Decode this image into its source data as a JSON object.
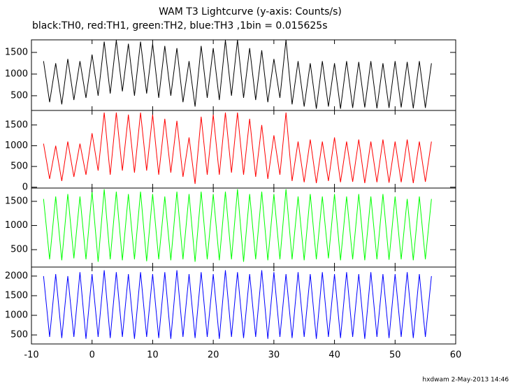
{
  "title": "WAM T3 Lightcurve (y-axis: Counts/s)",
  "subtitle": "black:TH0, red:TH1, green:TH2, blue:TH3 ,1bin = 0.015625s",
  "footer": "hxdwam  2-May-2013 14:46",
  "chart_data": [
    {
      "type": "line",
      "xlim": [
        -10,
        60
      ],
      "ylim": [
        160,
        1790
      ],
      "yticks": [
        500,
        1000,
        1500
      ],
      "x": [
        -8,
        -7,
        -6,
        -5,
        -4,
        -3,
        -2,
        -1,
        0,
        1,
        2,
        3,
        4,
        5,
        6,
        7,
        8,
        9,
        10,
        11,
        12,
        13,
        14,
        15,
        16,
        17,
        18,
        19,
        20,
        21,
        22,
        23,
        24,
        25,
        26,
        27,
        28,
        29,
        30,
        31,
        32,
        33,
        34,
        35,
        36,
        37,
        38,
        39,
        40,
        41,
        42,
        43,
        44,
        45,
        46,
        47,
        48,
        49,
        50,
        51,
        52,
        53,
        54,
        55,
        56
      ],
      "series": [
        {
          "name": "TH0",
          "color": "#000000",
          "values": [
            1300,
            350,
            1250,
            300,
            1350,
            400,
            1300,
            450,
            1450,
            500,
            1750,
            550,
            1780,
            600,
            1700,
            500,
            1750,
            550,
            1700,
            450,
            1650,
            500,
            1600,
            350,
            1300,
            250,
            1650,
            450,
            1600,
            400,
            1780,
            500,
            1790,
            450,
            1600,
            400,
            1550,
            350,
            1350,
            450,
            1790,
            300,
            1300,
            250,
            1250,
            200,
            1300,
            250,
            1250,
            200,
            1300,
            220,
            1280,
            230,
            1300,
            210,
            1250,
            220,
            1300,
            230,
            1280,
            210,
            1300,
            220,
            1250
          ]
        }
      ]
    },
    {
      "type": "line",
      "xlim": [
        -10,
        60
      ],
      "ylim": [
        -20,
        1850
      ],
      "yticks": [
        0,
        500,
        1000,
        1500
      ],
      "x": [
        -8,
        -7,
        -6,
        -5,
        -4,
        -3,
        -2,
        -1,
        0,
        1,
        2,
        3,
        4,
        5,
        6,
        7,
        8,
        9,
        10,
        11,
        12,
        13,
        14,
        15,
        16,
        17,
        18,
        19,
        20,
        21,
        22,
        23,
        24,
        25,
        26,
        27,
        28,
        29,
        30,
        31,
        32,
        33,
        34,
        35,
        36,
        37,
        38,
        39,
        40,
        41,
        42,
        43,
        44,
        45,
        46,
        47,
        48,
        49,
        50,
        51,
        52,
        53,
        54,
        55,
        56
      ],
      "series": [
        {
          "name": "TH1",
          "color": "#ff0000",
          "values": [
            1050,
            200,
            1000,
            150,
            1100,
            250,
            1050,
            300,
            1300,
            400,
            1800,
            300,
            1800,
            400,
            1750,
            350,
            1800,
            400,
            1750,
            300,
            1650,
            350,
            1600,
            250,
            1200,
            80,
            1700,
            300,
            1750,
            300,
            1800,
            350,
            1800,
            300,
            1650,
            250,
            1500,
            200,
            1250,
            300,
            1800,
            150,
            1100,
            120,
            1150,
            100,
            1100,
            150,
            1200,
            120,
            1100,
            130,
            1150,
            100,
            1100,
            120,
            1150,
            110,
            1100,
            120,
            1150,
            100,
            1100,
            130,
            1100
          ]
        }
      ]
    },
    {
      "type": "line",
      "xlim": [
        -10,
        60
      ],
      "ylim": [
        140,
        1775
      ],
      "yticks": [
        500,
        1000,
        1500
      ],
      "x": [
        -8,
        -7,
        -6,
        -5,
        -4,
        -3,
        -2,
        -1,
        0,
        1,
        2,
        3,
        4,
        5,
        6,
        7,
        8,
        9,
        10,
        11,
        12,
        13,
        14,
        15,
        16,
        17,
        18,
        19,
        20,
        21,
        22,
        23,
        24,
        25,
        26,
        27,
        28,
        29,
        30,
        31,
        32,
        33,
        34,
        35,
        36,
        37,
        38,
        39,
        40,
        41,
        42,
        43,
        44,
        45,
        46,
        47,
        48,
        49,
        50,
        51,
        52,
        53,
        54,
        55,
        56
      ],
      "series": [
        {
          "name": "TH2",
          "color": "#00ff00",
          "values": [
            1550,
            300,
            1600,
            280,
            1650,
            320,
            1600,
            300,
            1700,
            250,
            1750,
            300,
            1700,
            280,
            1650,
            300,
            1700,
            260,
            1650,
            300,
            1600,
            280,
            1700,
            300,
            1650,
            250,
            1700,
            300,
            1650,
            280,
            1700,
            300,
            1750,
            250,
            1650,
            300,
            1700,
            280,
            1650,
            300,
            1750,
            300,
            1600,
            280,
            1650,
            300,
            1600,
            320,
            1650,
            280,
            1600,
            300,
            1650,
            280,
            1600,
            300,
            1650,
            290,
            1600,
            300,
            1550,
            280,
            1600,
            300,
            1550
          ]
        }
      ]
    },
    {
      "type": "line",
      "xlim": [
        -10,
        60
      ],
      "ylim": [
        270,
        2230
      ],
      "yticks": [
        500,
        1000,
        1500,
        2000
      ],
      "xticks": [
        -10,
        0,
        10,
        20,
        30,
        40,
        50,
        60
      ],
      "x": [
        -8,
        -7,
        -6,
        -5,
        -4,
        -3,
        -2,
        -1,
        0,
        1,
        2,
        3,
        4,
        5,
        6,
        7,
        8,
        9,
        10,
        11,
        12,
        13,
        14,
        15,
        16,
        17,
        18,
        19,
        20,
        21,
        22,
        23,
        24,
        25,
        26,
        27,
        28,
        29,
        30,
        31,
        32,
        33,
        34,
        35,
        36,
        37,
        38,
        39,
        40,
        41,
        42,
        43,
        44,
        45,
        46,
        47,
        48,
        49,
        50,
        51,
        52,
        53,
        54,
        55,
        56
      ],
      "series": [
        {
          "name": "TH3",
          "color": "#0000ff",
          "values": [
            2000,
            450,
            2050,
            420,
            2000,
            450,
            2100,
            400,
            2050,
            450,
            2150,
            420,
            2100,
            450,
            2050,
            400,
            2100,
            450,
            2050,
            420,
            2100,
            400,
            2150,
            450,
            2050,
            420,
            2100,
            450,
            2050,
            400,
            2150,
            450,
            2100,
            420,
            2050,
            450,
            2150,
            400,
            2100,
            450,
            2050,
            420,
            2100,
            450,
            2050,
            400,
            2100,
            450,
            2050,
            420,
            2100,
            450,
            2050,
            400,
            2100,
            450,
            2050,
            420,
            2050,
            450,
            2100,
            420,
            2050,
            450,
            2000
          ]
        }
      ]
    }
  ]
}
